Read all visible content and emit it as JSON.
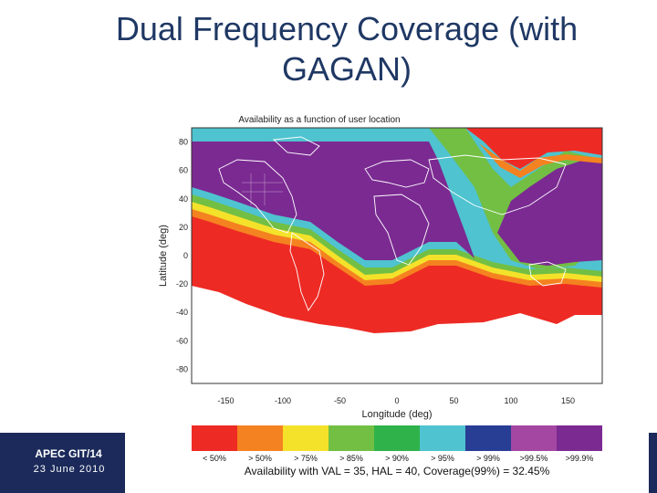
{
  "slide": {
    "title_line1": "Dual Frequency Coverage (with",
    "title_line2": "GAGAN)",
    "footer_code": "APEC GIT/14",
    "footer_date": "23  June  2010"
  },
  "map": {
    "title": "Availability as a function of user location",
    "xlabel": "Longitude (deg)",
    "ylabel": "Latitude (deg)",
    "xticks": [
      "-150",
      "-100",
      "-50",
      "0",
      "50",
      "100",
      "150"
    ],
    "yticks": [
      "80",
      "60",
      "40",
      "20",
      "0",
      "-20",
      "-40",
      "-60",
      "-80"
    ],
    "summary": "Availability with VAL = 35,  HAL = 40, Coverage(99%) = 32.45%"
  },
  "legend": [
    {
      "label": "< 50%",
      "color": "#ee2a24"
    },
    {
      "label": "> 50%",
      "color": "#f58220"
    },
    {
      "label": "> 75%",
      "color": "#f4e22a"
    },
    {
      "label": "> 85%",
      "color": "#72bf44"
    },
    {
      "label": "> 90%",
      "color": "#2fb24a"
    },
    {
      "label": "> 95%",
      "color": "#4fc3cf"
    },
    {
      "label": "> 99%",
      "color": "#283d94"
    },
    {
      "label": ">99.5%",
      "color": "#a347a3"
    },
    {
      "label": ">99.9%",
      "color": "#7b2a92"
    }
  ]
}
